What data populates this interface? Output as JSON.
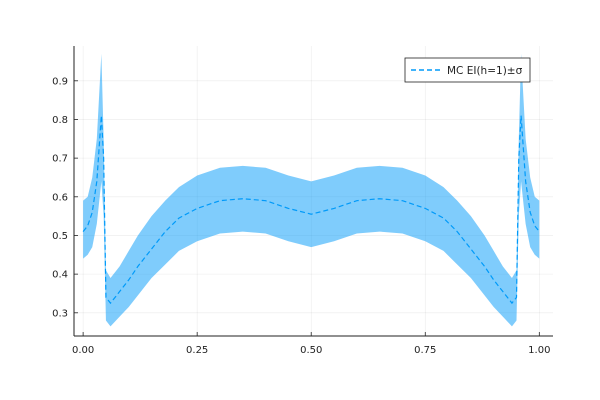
{
  "chart_data": {
    "type": "area",
    "title": "",
    "xlabel": "",
    "ylabel": "",
    "xlim": [
      -0.02,
      1.03
    ],
    "ylim": [
      0.24,
      0.99
    ],
    "x_ticks": [
      0.0,
      0.25,
      0.5,
      0.75,
      1.0
    ],
    "x_tick_labels": [
      "0.00",
      "0.25",
      "0.50",
      "0.75",
      "1.00"
    ],
    "y_ticks": [
      0.3,
      0.4,
      0.5,
      0.6,
      0.7,
      0.8,
      0.9
    ],
    "y_tick_labels": [
      "0.3",
      "0.4",
      "0.5",
      "0.6",
      "0.7",
      "0.8",
      "0.9"
    ],
    "grid": true,
    "legend_position": "top-right",
    "series": [
      {
        "name": "MC EI(h=1)±σ",
        "color": "#009af9",
        "band_color": "#009af9",
        "line_style": "dashed",
        "x": [
          0.0,
          0.01,
          0.02,
          0.03,
          0.04,
          0.045,
          0.05,
          0.06,
          0.08,
          0.1,
          0.12,
          0.15,
          0.18,
          0.21,
          0.25,
          0.3,
          0.35,
          0.4,
          0.45,
          0.5,
          0.55,
          0.6,
          0.65,
          0.7,
          0.75,
          0.79,
          0.82,
          0.85,
          0.88,
          0.9,
          0.92,
          0.94,
          0.95,
          0.955,
          0.96,
          0.97,
          0.98,
          0.99,
          1.0
        ],
        "mean": [
          0.51,
          0.525,
          0.56,
          0.64,
          0.81,
          0.7,
          0.34,
          0.325,
          0.355,
          0.385,
          0.42,
          0.465,
          0.51,
          0.545,
          0.57,
          0.59,
          0.595,
          0.59,
          0.57,
          0.555,
          0.57,
          0.59,
          0.595,
          0.59,
          0.57,
          0.545,
          0.51,
          0.465,
          0.42,
          0.385,
          0.355,
          0.325,
          0.34,
          0.7,
          0.81,
          0.64,
          0.56,
          0.525,
          0.51
        ],
        "upper": [
          0.59,
          0.6,
          0.65,
          0.75,
          0.97,
          0.75,
          0.41,
          0.39,
          0.42,
          0.46,
          0.5,
          0.55,
          0.59,
          0.625,
          0.655,
          0.675,
          0.68,
          0.675,
          0.655,
          0.64,
          0.655,
          0.675,
          0.68,
          0.675,
          0.655,
          0.625,
          0.59,
          0.55,
          0.5,
          0.46,
          0.42,
          0.39,
          0.41,
          0.75,
          0.97,
          0.75,
          0.65,
          0.6,
          0.59
        ],
        "lower": [
          0.44,
          0.45,
          0.47,
          0.53,
          0.64,
          0.55,
          0.28,
          0.265,
          0.29,
          0.315,
          0.345,
          0.39,
          0.425,
          0.46,
          0.485,
          0.505,
          0.51,
          0.505,
          0.485,
          0.47,
          0.485,
          0.505,
          0.51,
          0.505,
          0.485,
          0.46,
          0.425,
          0.39,
          0.345,
          0.315,
          0.29,
          0.265,
          0.28,
          0.55,
          0.64,
          0.53,
          0.47,
          0.45,
          0.44
        ]
      }
    ]
  }
}
